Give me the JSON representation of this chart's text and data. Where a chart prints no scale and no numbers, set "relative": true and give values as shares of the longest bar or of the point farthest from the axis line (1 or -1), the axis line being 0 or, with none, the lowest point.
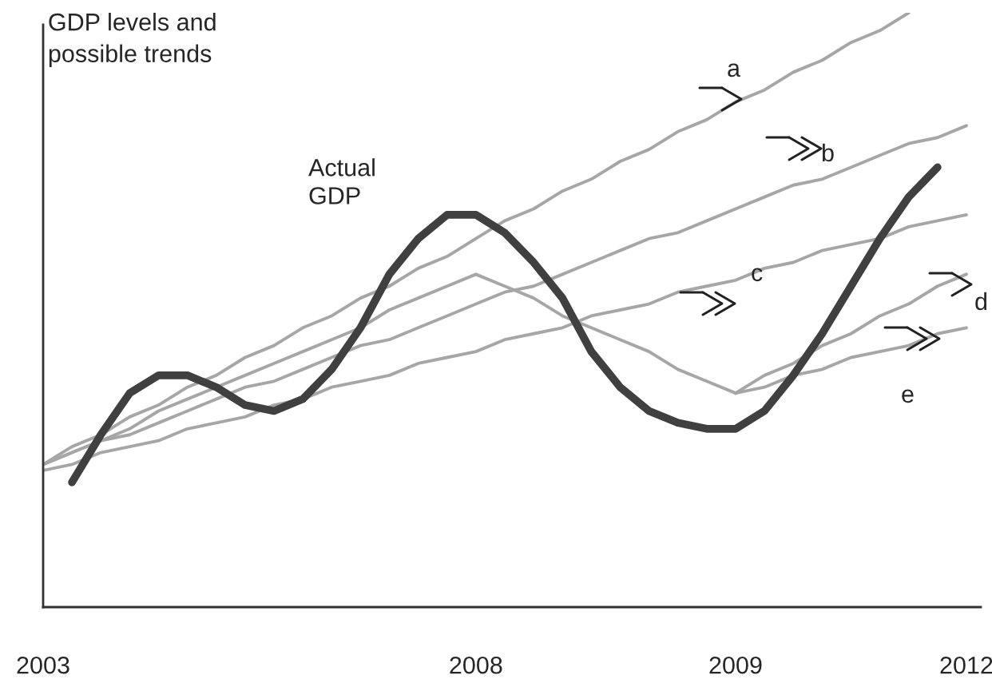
{
  "chart_data": {
    "type": "line",
    "relative": true,
    "ylabel": "GDP levels and\npossible trends",
    "categories": [
      "2003",
      null,
      null,
      null,
      null,
      null,
      null,
      null,
      null,
      null,
      null,
      null,
      null,
      null,
      null,
      "2008",
      null,
      null,
      null,
      null,
      null,
      null,
      null,
      null,
      "2009",
      null,
      null,
      null,
      null,
      null,
      null,
      null,
      "2012"
    ],
    "grid": false,
    "legend": false,
    "marker": "none",
    "line_style": "solid",
    "series": [
      {
        "color": "#a6a6a6",
        "values": [
          0.24,
          0.27,
          0.29,
          0.32,
          0.34,
          0.37,
          0.39,
          0.42,
          0.44,
          0.47,
          0.49,
          0.52,
          0.54,
          0.57,
          0.59,
          0.62,
          0.65,
          0.67,
          0.7,
          0.72,
          0.75,
          0.77,
          0.8,
          0.82,
          0.85,
          0.87,
          0.9,
          0.92,
          0.95,
          0.97,
          1.0,
          null,
          null
        ]
      },
      {
        "color": "#a6a6a6",
        "values": [
          0.24,
          0.26,
          0.28,
          0.29,
          0.31,
          0.33,
          0.35,
          0.37,
          0.38,
          0.4,
          0.42,
          0.44,
          0.45,
          0.47,
          0.49,
          0.51,
          0.53,
          0.54,
          0.56,
          0.58,
          0.6,
          0.62,
          0.63,
          0.65,
          0.67,
          0.69,
          0.71,
          0.72,
          0.74,
          0.76,
          0.78,
          0.79,
          0.81
        ]
      },
      {
        "color": "#a6a6a6",
        "values": [
          0.23,
          0.24,
          0.26,
          0.27,
          0.28,
          0.3,
          0.31,
          0.32,
          0.34,
          0.35,
          0.37,
          0.38,
          0.39,
          0.41,
          0.42,
          0.43,
          0.45,
          0.46,
          0.47,
          0.49,
          0.5,
          0.51,
          0.53,
          0.54,
          0.55,
          0.57,
          0.58,
          0.6,
          0.61,
          0.62,
          0.64,
          0.65,
          0.66
        ]
      },
      {
        "color": "#a6a6a6",
        "values": [
          0.24,
          0.26,
          0.28,
          0.3,
          0.33,
          0.35,
          0.37,
          0.39,
          0.41,
          0.43,
          0.45,
          0.47,
          0.5,
          0.52,
          0.54,
          0.56,
          0.54,
          0.52,
          0.49,
          0.47,
          0.45,
          0.43,
          0.4,
          0.38,
          0.36,
          null,
          null,
          null,
          null,
          null,
          null,
          null,
          null
        ]
      },
      {
        "color": "#a6a6a6",
        "values": [
          null,
          null,
          null,
          null,
          null,
          null,
          null,
          null,
          null,
          null,
          null,
          null,
          null,
          null,
          null,
          null,
          null,
          null,
          null,
          null,
          null,
          null,
          null,
          null,
          0.36,
          0.39,
          0.41,
          0.44,
          0.46,
          0.49,
          0.51,
          0.54,
          0.56
        ]
      },
      {
        "color": "#a6a6a6",
        "values": [
          null,
          null,
          null,
          null,
          null,
          null,
          null,
          null,
          null,
          null,
          null,
          null,
          null,
          null,
          null,
          null,
          null,
          null,
          null,
          null,
          null,
          null,
          null,
          null,
          0.36,
          0.37,
          0.39,
          0.4,
          0.42,
          0.43,
          0.44,
          0.46,
          0.47
        ]
      },
      {
        "color": "#404040",
        "values": [
          null,
          0.21,
          0.29,
          0.36,
          0.39,
          0.39,
          0.37,
          0.34,
          0.33,
          0.35,
          0.4,
          0.47,
          0.56,
          0.62,
          0.66,
          0.66,
          0.63,
          0.58,
          0.52,
          0.43,
          0.37,
          0.33,
          0.31,
          0.3,
          0.3,
          0.33,
          0.39,
          0.46,
          0.54,
          0.62,
          0.69,
          0.74,
          null
        ]
      }
    ],
    "annotations": [
      "Actual\nGDP",
      "a",
      "b",
      "c",
      "d",
      "e"
    ]
  }
}
